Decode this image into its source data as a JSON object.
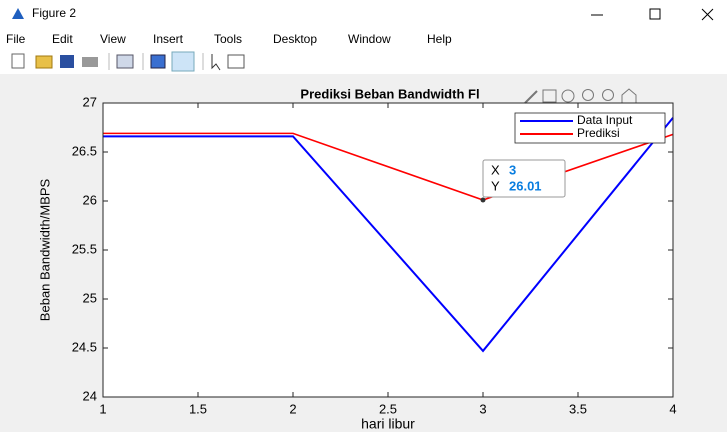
{
  "window": {
    "title": "Figure 2",
    "menu": [
      "File",
      "Edit",
      "View",
      "Insert",
      "Tools",
      "Desktop",
      "Window",
      "Help"
    ]
  },
  "chart_data": {
    "type": "line",
    "title": "Prediksi Beban Bandwidth Fl",
    "xlabel": "hari libur",
    "ylabel": "Beban Bandwidth/MBPS",
    "x": [
      1,
      2,
      3,
      4
    ],
    "series": [
      {
        "name": "Data Input",
        "color": "#0000ff",
        "values": [
          26.66,
          26.66,
          24.47,
          26.85
        ]
      },
      {
        "name": "Prediksi",
        "color": "#ff0000",
        "values": [
          26.69,
          26.69,
          26.01,
          26.68
        ]
      }
    ],
    "xlim": [
      1,
      4
    ],
    "xticks": [
      1,
      1.5,
      2,
      2.5,
      3,
      3.5,
      4
    ],
    "ylim": [
      24,
      27
    ],
    "yticks": [
      24,
      24.5,
      25,
      25.5,
      26,
      26.5,
      27
    ],
    "legend": "northeast",
    "datatip": {
      "x_label": "X",
      "x": 3,
      "y_label": "Y",
      "y": 26.01
    }
  }
}
